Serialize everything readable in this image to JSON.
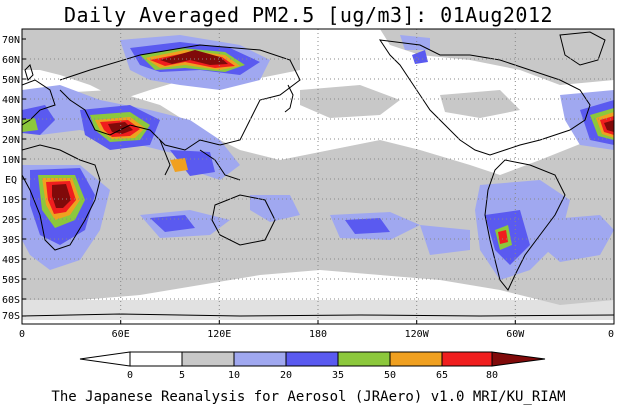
{
  "title": "Daily Averaged PM2.5 [ug/m3]: 01Aug2012",
  "footer": "The Japanese Reanalysis for Aerosol (JRAero) v1.0 MRI/KU_RIAM",
  "lat_labels": [
    "70N",
    "60N",
    "50N",
    "40N",
    "30N",
    "20N",
    "10N",
    "EQ",
    "10S",
    "20S",
    "30S",
    "40S",
    "50S",
    "60S",
    "70S"
  ],
  "lon_labels": [
    "0",
    "60E",
    "120E",
    "180",
    "120W",
    "60W",
    "0"
  ],
  "colorbar": {
    "ticks": [
      "0",
      "5",
      "10",
      "20",
      "35",
      "50",
      "65",
      "80"
    ],
    "colors": [
      "#ffffff",
      "#c8c8c8",
      "#a0a8f0",
      "#5a5af0",
      "#8cc83c",
      "#f0a020",
      "#f01e1e",
      "#800a0a"
    ]
  },
  "colors": {
    "white": "#ffffff",
    "gray": "#c8c8c8",
    "lightblue": "#a0a8f0",
    "blue": "#5a5af0",
    "green": "#8cc83c",
    "orange": "#f0a020",
    "red": "#f01e1e",
    "darkred": "#800a0a"
  }
}
